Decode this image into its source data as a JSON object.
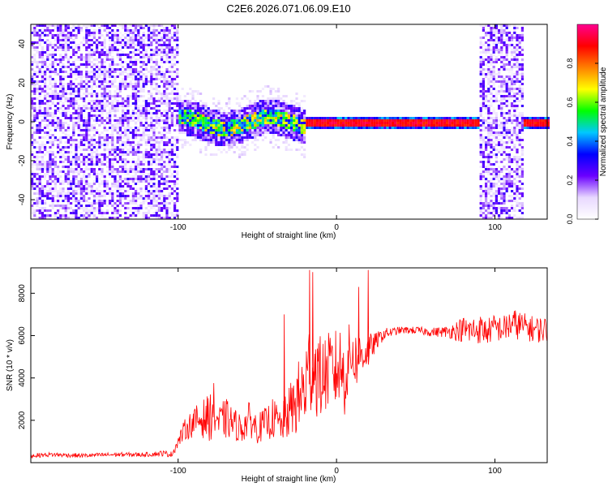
{
  "title": "C2E6.2026.071.06.09.E10",
  "chart_data": [
    {
      "type": "heatmap",
      "xlabel": "Height of straight line (km)",
      "ylabel": "Frequency (Hz)",
      "xlim": [
        -193,
        133
      ],
      "ylim": [
        -50,
        50
      ],
      "xticks": [
        -100,
        0,
        100
      ],
      "yticks": [
        -40,
        -20,
        0,
        20,
        40
      ],
      "colorbar": {
        "label": "Normalized spectral amplitude",
        "range": [
          0,
          1
        ],
        "ticks": [
          "0.0",
          "0.2",
          "0.4",
          "0.6",
          "0.8"
        ],
        "colormap": [
          "#ffffff",
          "#e8d8ff",
          "#6a00ff",
          "#0000ff",
          "#00c8ff",
          "#00ff00",
          "#ffff00",
          "#ff8000",
          "#ff0000",
          "#ff0090"
        ]
      },
      "regions": [
        {
          "x": [
            -193,
            -100
          ],
          "pattern": "broadband noise, low amplitude (0.1-0.3)"
        },
        {
          "x": [
            -100,
            -20
          ],
          "pattern": "signal band near 0 Hz, spread +-10 Hz, amplitude 0.3-0.8"
        },
        {
          "x": [
            -20,
            90
          ],
          "pattern": "narrow line at 0 Hz, amplitude ~0.9"
        },
        {
          "x": [
            90,
            117
          ],
          "pattern": "broadband noise, low amplitude"
        },
        {
          "x": [
            117,
            133
          ],
          "pattern": "narrow line at 0 Hz, amplitude ~0.9"
        }
      ]
    },
    {
      "type": "line",
      "xlabel": "Height of straight line (km)",
      "ylabel": "SNR (10 * v/v)",
      "xlim": [
        -193,
        133
      ],
      "ylim": [
        0,
        9200
      ],
      "xticks": [
        -100,
        0,
        100
      ],
      "yticks": [
        2000,
        4000,
        6000,
        8000
      ],
      "series": [
        {
          "color": "#ff0000",
          "x": [
            -193,
            -180,
            -160,
            -140,
            -120,
            -110,
            -104,
            -100,
            -96,
            -90,
            -86,
            -80,
            -78,
            -74,
            -70,
            -65,
            -60,
            -55,
            -50,
            -45,
            -40,
            -35,
            -30,
            -25,
            -22,
            -20,
            -18,
            -15,
            -14,
            -10,
            -5,
            0,
            3,
            5,
            8,
            10,
            12,
            15,
            20,
            25,
            30,
            35,
            40,
            50,
            60,
            70,
            80,
            85,
            90,
            95,
            100,
            105,
            110,
            115,
            120,
            125,
            130,
            133
          ],
          "y": [
            300,
            350,
            300,
            350,
            350,
            400,
            350,
            900,
            1400,
            1700,
            1800,
            1800,
            2100,
            1600,
            1800,
            1600,
            1400,
            1800,
            1400,
            1600,
            1800,
            1500,
            2000,
            2400,
            2600,
            2800,
            3600,
            3900,
            3800,
            3400,
            3800,
            3800,
            4000,
            3400,
            4400,
            4800,
            4400,
            4800,
            5000,
            5600,
            6000,
            6100,
            6200,
            6200,
            6100,
            6100,
            6100,
            6000,
            6100,
            6000,
            6200,
            6100,
            6300,
            6300,
            6200,
            6100,
            6100,
            6100
          ],
          "noise": [
            150,
            150,
            150,
            150,
            150,
            200,
            200,
            400,
            700,
            1000,
            1200,
            1600,
            2000,
            1200,
            1400,
            1100,
            1000,
            1200,
            1000,
            1100,
            1400,
            1200,
            1800,
            2400,
            3000,
            3000,
            3400,
            3000,
            3200,
            2800,
            2600,
            2800,
            2800,
            2600,
            2400,
            2200,
            2000,
            1600,
            1200,
            600,
            400,
            300,
            250,
            250,
            300,
            400,
            900,
            1000,
            1000,
            900,
            900,
            900,
            1100,
            1000,
            900,
            900,
            900,
            900
          ]
        }
      ],
      "spikes": [
        {
          "x": -17,
          "y": 9100
        },
        {
          "x": -15,
          "y": 9000
        },
        {
          "x": 20,
          "y": 9100
        },
        {
          "x": 14,
          "y": 8300
        },
        {
          "x": -33,
          "y": 7000
        }
      ]
    }
  ]
}
